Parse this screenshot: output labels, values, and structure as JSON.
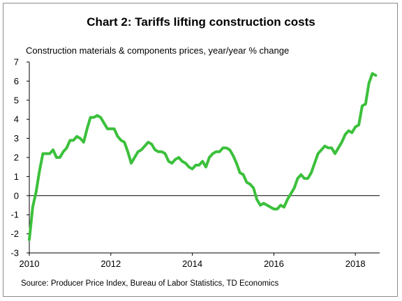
{
  "chart_data": {
    "type": "line",
    "title": "Chart 2: Tariffs lifting construction costs",
    "subtitle": "Construction materials & components prices, year/year % change",
    "source": "Source: Producer Price Index, Bureau of Labor Statistics, TD Economics",
    "xlabel": "",
    "ylabel": "",
    "xlim": [
      2010,
      2018.6
    ],
    "ylim": [
      -3,
      7
    ],
    "x_ticks": [
      2010,
      2012,
      2014,
      2016,
      2018
    ],
    "y_ticks": [
      -3,
      -2,
      -1,
      0,
      1,
      2,
      3,
      4,
      5,
      6,
      7
    ],
    "grid": false,
    "legend": "none",
    "series": [
      {
        "color": "#3cc03c",
        "points": [
          [
            2010.0,
            -2.3
          ],
          [
            2010.083,
            -0.6
          ],
          [
            2010.167,
            0.2
          ],
          [
            2010.25,
            1.3
          ],
          [
            2010.333,
            2.2
          ],
          [
            2010.417,
            2.2
          ],
          [
            2010.5,
            2.2
          ],
          [
            2010.583,
            2.4
          ],
          [
            2010.667,
            2.0
          ],
          [
            2010.75,
            2.0
          ],
          [
            2010.833,
            2.3
          ],
          [
            2010.917,
            2.5
          ],
          [
            2011.0,
            2.9
          ],
          [
            2011.083,
            2.9
          ],
          [
            2011.167,
            3.1
          ],
          [
            2011.25,
            3.0
          ],
          [
            2011.333,
            2.8
          ],
          [
            2011.417,
            3.5
          ],
          [
            2011.5,
            4.1
          ],
          [
            2011.583,
            4.1
          ],
          [
            2011.667,
            4.2
          ],
          [
            2011.75,
            4.1
          ],
          [
            2011.833,
            3.8
          ],
          [
            2011.917,
            3.5
          ],
          [
            2012.0,
            3.5
          ],
          [
            2012.083,
            3.5
          ],
          [
            2012.167,
            3.1
          ],
          [
            2012.25,
            2.9
          ],
          [
            2012.333,
            2.8
          ],
          [
            2012.417,
            2.3
          ],
          [
            2012.5,
            1.7
          ],
          [
            2012.583,
            2.0
          ],
          [
            2012.667,
            2.3
          ],
          [
            2012.75,
            2.4
          ],
          [
            2012.833,
            2.6
          ],
          [
            2012.917,
            2.8
          ],
          [
            2013.0,
            2.7
          ],
          [
            2013.083,
            2.4
          ],
          [
            2013.167,
            2.3
          ],
          [
            2013.25,
            2.3
          ],
          [
            2013.333,
            2.2
          ],
          [
            2013.417,
            1.8
          ],
          [
            2013.5,
            1.7
          ],
          [
            2013.583,
            1.9
          ],
          [
            2013.667,
            2.0
          ],
          [
            2013.75,
            1.8
          ],
          [
            2013.833,
            1.7
          ],
          [
            2013.917,
            1.5
          ],
          [
            2014.0,
            1.4
          ],
          [
            2014.083,
            1.6
          ],
          [
            2014.167,
            1.6
          ],
          [
            2014.25,
            1.8
          ],
          [
            2014.333,
            1.5
          ],
          [
            2014.417,
            2.0
          ],
          [
            2014.5,
            2.2
          ],
          [
            2014.583,
            2.3
          ],
          [
            2014.667,
            2.3
          ],
          [
            2014.75,
            2.5
          ],
          [
            2014.833,
            2.5
          ],
          [
            2014.917,
            2.4
          ],
          [
            2015.0,
            2.1
          ],
          [
            2015.083,
            1.7
          ],
          [
            2015.167,
            1.2
          ],
          [
            2015.25,
            1.1
          ],
          [
            2015.333,
            0.7
          ],
          [
            2015.417,
            0.6
          ],
          [
            2015.5,
            0.4
          ],
          [
            2015.583,
            -0.2
          ],
          [
            2015.667,
            -0.5
          ],
          [
            2015.75,
            -0.4
          ],
          [
            2015.833,
            -0.5
          ],
          [
            2015.917,
            -0.6
          ],
          [
            2016.0,
            -0.7
          ],
          [
            2016.083,
            -0.7
          ],
          [
            2016.167,
            -0.5
          ],
          [
            2016.25,
            -0.6
          ],
          [
            2016.333,
            -0.2
          ],
          [
            2016.417,
            0.1
          ],
          [
            2016.5,
            0.4
          ],
          [
            2016.583,
            0.9
          ],
          [
            2016.667,
            1.1
          ],
          [
            2016.75,
            0.9
          ],
          [
            2016.833,
            0.9
          ],
          [
            2016.917,
            1.2
          ],
          [
            2017.0,
            1.7
          ],
          [
            2017.083,
            2.2
          ],
          [
            2017.167,
            2.4
          ],
          [
            2017.25,
            2.6
          ],
          [
            2017.333,
            2.5
          ],
          [
            2017.417,
            2.5
          ],
          [
            2017.5,
            2.2
          ],
          [
            2017.583,
            2.5
          ],
          [
            2017.667,
            2.8
          ],
          [
            2017.75,
            3.2
          ],
          [
            2017.833,
            3.4
          ],
          [
            2017.917,
            3.3
          ],
          [
            2018.0,
            3.6
          ],
          [
            2018.083,
            3.7
          ],
          [
            2018.167,
            4.7
          ],
          [
            2018.25,
            4.8
          ],
          [
            2018.333,
            5.9
          ],
          [
            2018.417,
            6.4
          ],
          [
            2018.5,
            6.3
          ]
        ]
      }
    ]
  }
}
